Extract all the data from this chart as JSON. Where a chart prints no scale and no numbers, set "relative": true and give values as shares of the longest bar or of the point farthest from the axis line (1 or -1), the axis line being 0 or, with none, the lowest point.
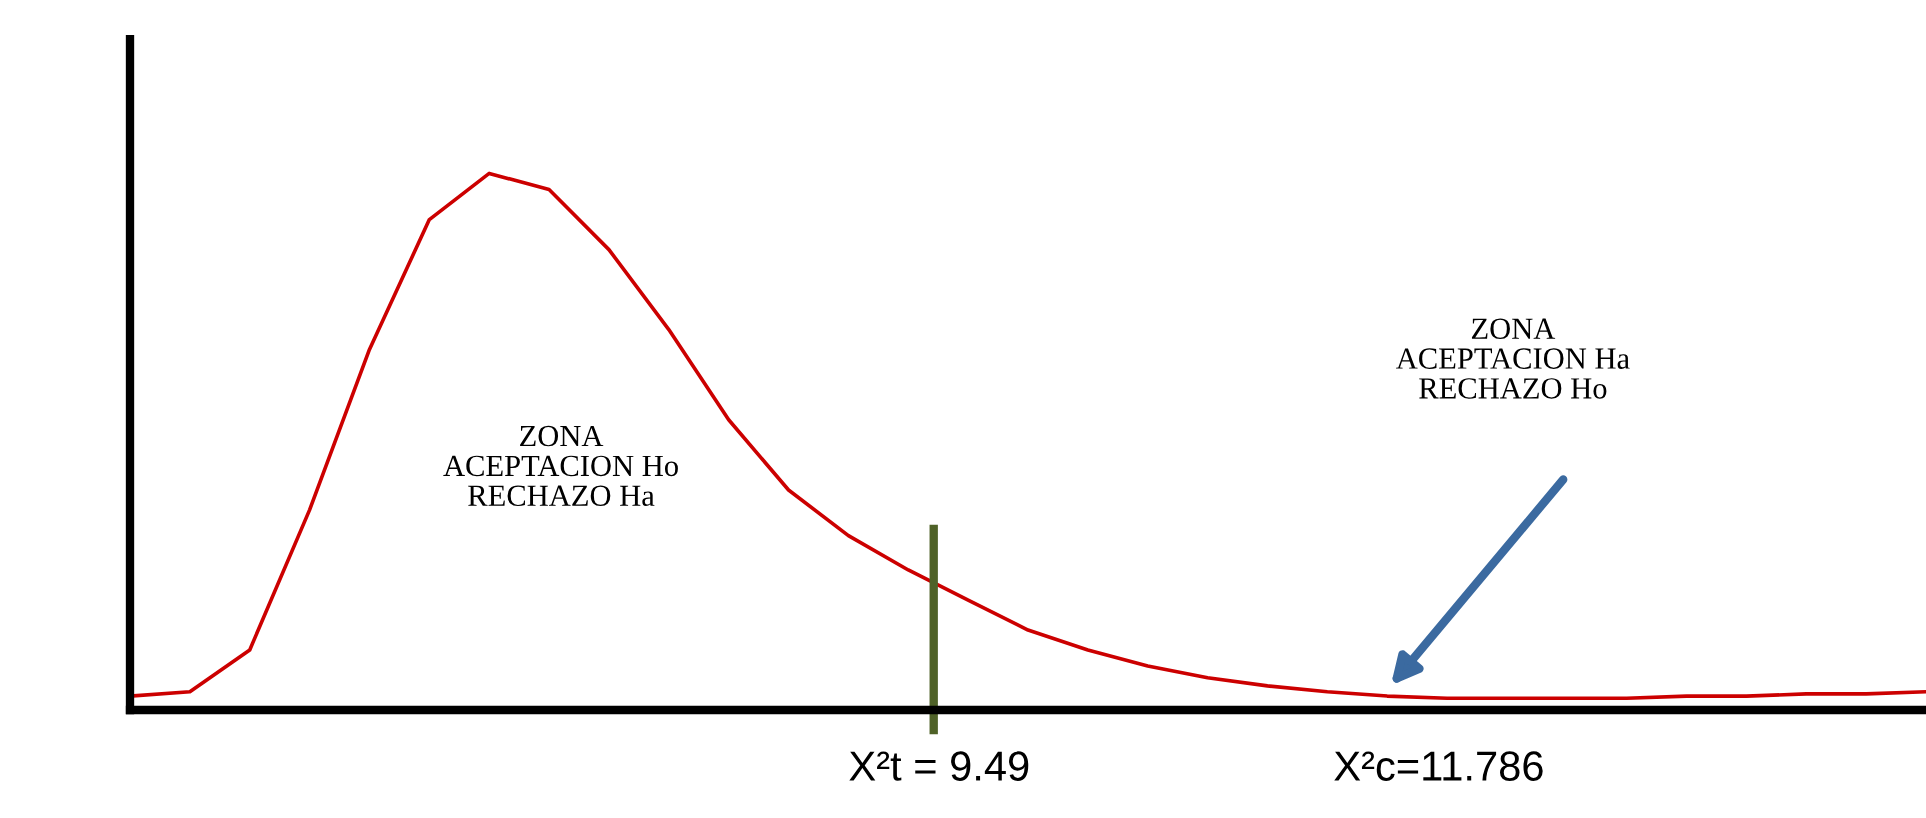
{
  "chart_data": {
    "type": "line",
    "relative": true,
    "grid": false,
    "legend": false,
    "marker": "none",
    "line_style": "solid",
    "categories": [
      null,
      null,
      null,
      null,
      null,
      null,
      null,
      null,
      null,
      null,
      null,
      null,
      null,
      null,
      null,
      null,
      null,
      null,
      null,
      null,
      null,
      null,
      null,
      null,
      null,
      null,
      null,
      null,
      null,
      null,
      null
    ],
    "series": [
      {
        "color": "#cc0000",
        "values": [
          0.026,
          0.034,
          0.112,
          0.373,
          0.672,
          0.914,
          1.0,
          0.97,
          0.858,
          0.709,
          0.541,
          0.41,
          0.325,
          0.261,
          0.205,
          0.149,
          0.112,
          0.082,
          0.06,
          0.045,
          0.034,
          0.026,
          0.022,
          0.022,
          0.022,
          0.022,
          0.026,
          0.026,
          0.03,
          0.03,
          0.034
        ]
      }
    ],
    "annotations": [
      "ZONA\nACEPTACION Ho\nRECHAZO Ha",
      "ZONA\nACEPTACION Ha\nRECHAZO Ho",
      "X²t = 9.49",
      "X²c=11.786"
    ]
  }
}
